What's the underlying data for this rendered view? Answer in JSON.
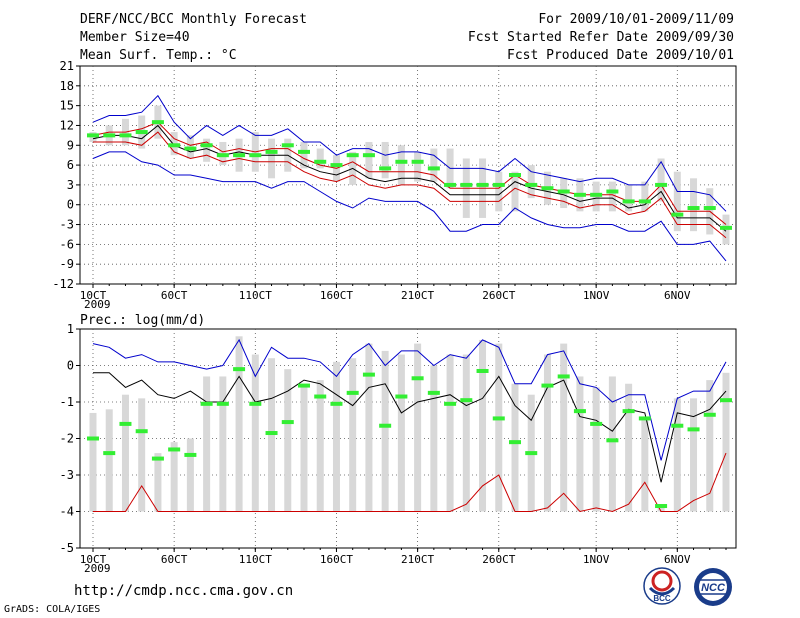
{
  "header": {
    "title": "DERF/NCC/BCC Monthly Forecast",
    "member_size": "Member Size=40",
    "variable1": "Mean Surf. Temp.: °C",
    "period": "For 2009/10/01-2009/11/09",
    "started": "Fcst Started Refer Date 2009/09/30",
    "produced": "Fcst Produced Date 2009/10/01"
  },
  "footer": {
    "url": "http://cmdp.ncc.cma.gov.cn",
    "grads": "GrADS: COLA/IGES",
    "logo1_text": "BCC",
    "logo2_text": "NCC"
  },
  "colors": {
    "upper": "#0000cc",
    "lower": "#0000cc",
    "mean": "#000000",
    "red": "#cc0000",
    "green": "#33ee33",
    "bar": "#d8d8d8",
    "grid": "#555555"
  },
  "chart_data": [
    {
      "type": "line",
      "title": "Mean Surf. Temp.: °C",
      "day_labels": [
        "10CT",
        "60CT",
        "110CT",
        "160CT",
        "210CT",
        "260CT",
        "1NOV",
        "6NOV"
      ],
      "label_days": [
        1,
        6,
        11,
        16,
        21,
        26,
        32,
        37
      ],
      "year_label": "2009",
      "ylim": [
        -12,
        21
      ],
      "yticks": [
        -12,
        -9,
        -6,
        -3,
        0,
        3,
        6,
        9,
        12,
        15,
        18,
        21
      ],
      "days": 40,
      "bar_low": [
        9.5,
        9,
        9,
        8.5,
        10,
        7.5,
        7,
        6.5,
        6,
        5,
        5,
        4,
        5,
        5.5,
        5.5,
        3.5,
        3,
        4,
        4,
        3,
        3.5,
        3.5,
        2.5,
        -2,
        -2,
        -1,
        -1,
        1,
        0,
        -0.5,
        -1,
        -1,
        -1,
        -1,
        -1,
        0.5,
        -4,
        -4,
        -4.5,
        -6
      ],
      "bar_high": [
        11,
        12,
        13,
        13.5,
        15,
        11,
        10.5,
        10,
        9.5,
        10,
        11,
        10,
        10,
        9.5,
        8.5,
        7.5,
        8,
        9.5,
        9.5,
        9,
        8,
        8.5,
        8.5,
        7,
        7,
        5,
        5,
        6,
        5,
        4,
        4,
        3.5,
        3.5,
        3,
        3.5,
        7,
        5,
        4,
        2.5,
        -1.5
      ],
      "green": [
        10.5,
        10.5,
        10.5,
        11,
        12.5,
        9,
        8.5,
        9,
        7.5,
        7.5,
        7.5,
        8,
        9,
        8,
        6.5,
        6,
        7.5,
        7.5,
        5.5,
        6.5,
        6.5,
        5.5,
        3,
        3,
        3,
        3,
        4.5,
        3,
        2.5,
        2,
        1.5,
        1.5,
        2,
        0.5,
        0.5,
        3,
        -1.5,
        -0.5,
        -0.5,
        -3.5
      ],
      "upper": [
        12.5,
        13.5,
        13.5,
        14,
        16.5,
        12.5,
        10,
        12,
        10.5,
        12,
        10.5,
        10.5,
        11.5,
        9.5,
        9.5,
        7.5,
        8.5,
        8.5,
        7.5,
        8,
        8,
        7.5,
        5.5,
        5.5,
        5.5,
        5,
        7,
        5,
        4.5,
        4,
        3.5,
        4,
        4,
        3,
        3,
        6.5,
        2,
        2,
        1.5,
        -1
      ],
      "mean": [
        10,
        10.5,
        10.5,
        10,
        12,
        9,
        8,
        8.5,
        7.5,
        8,
        7.5,
        7.5,
        7.5,
        6,
        5,
        4.5,
        5.5,
        4,
        3.5,
        4,
        4,
        3.5,
        1.5,
        1.5,
        1.5,
        1.5,
        3.5,
        2.5,
        2,
        1.5,
        0.5,
        1,
        1,
        -0.5,
        0,
        2,
        -2,
        -2,
        -2,
        -4
      ],
      "red_upper": [
        10.5,
        11,
        11,
        11.5,
        12.5,
        10,
        9,
        9.5,
        8,
        8.5,
        8,
        8.5,
        8.5,
        7,
        6,
        5.5,
        6.5,
        5,
        5,
        5,
        5,
        4.5,
        2.5,
        2.5,
        2.5,
        2.5,
        4.5,
        3,
        2.5,
        2,
        1.5,
        1.5,
        1.5,
        0.5,
        0.5,
        3,
        -1,
        -1,
        -1,
        -3
      ],
      "red_lower": [
        9.5,
        9.5,
        9.5,
        9,
        11,
        8,
        7,
        7.5,
        6.5,
        7,
        6.5,
        6.5,
        6.5,
        5,
        4,
        3.5,
        4.5,
        3,
        2.5,
        3,
        3,
        2.5,
        0.5,
        0.5,
        0.5,
        0.5,
        2.5,
        1.5,
        1,
        0.5,
        -0.5,
        0,
        0,
        -1.5,
        -1,
        1,
        -3,
        -3,
        -3,
        -5
      ],
      "lower": [
        7,
        8,
        8,
        6.5,
        6,
        4.5,
        4.5,
        4,
        3.5,
        3.5,
        3.5,
        2.5,
        3.5,
        3.5,
        2,
        0.5,
        -0.5,
        1,
        0.5,
        0.5,
        0.5,
        -1,
        -4,
        -4,
        -3,
        -3,
        -0.5,
        -2,
        -3,
        -3.5,
        -3.5,
        -3,
        -3,
        -4,
        -4,
        -2.5,
        -6,
        -6,
        -5.5,
        -8.5
      ]
    },
    {
      "type": "line",
      "title": "Prec.: log(mm/d)",
      "day_labels": [
        "10CT",
        "60CT",
        "110CT",
        "160CT",
        "210CT",
        "260CT",
        "1NOV",
        "6NOV"
      ],
      "label_days": [
        1,
        6,
        11,
        16,
        21,
        26,
        32,
        37
      ],
      "year_label": "2009",
      "ylim": [
        -5,
        1
      ],
      "yticks": [
        -5,
        -4,
        -3,
        -2,
        -1,
        0,
        1
      ],
      "days": 40,
      "bar_low": [
        -4,
        -4,
        -4,
        -4,
        -4,
        -4,
        -4,
        -4,
        -4,
        -4,
        -4,
        -4,
        -4,
        -4,
        -4,
        -4,
        -4,
        -4,
        -4,
        -4,
        -4,
        -4,
        -4,
        -4,
        -4,
        -4,
        -4,
        -4,
        -4,
        -4,
        -4,
        -4,
        -4,
        -4,
        -4,
        -4,
        -4,
        -4,
        -4,
        -4
      ],
      "bar_high": [
        -1.3,
        -1.2,
        -0.8,
        -0.9,
        -2.4,
        -2.1,
        -2.0,
        -0.3,
        -0.3,
        0.8,
        0.3,
        0.2,
        -0.1,
        -0.6,
        -0.4,
        0.1,
        0.2,
        0.6,
        0.4,
        0.3,
        0.6,
        0.0,
        0.3,
        0.3,
        0.7,
        0.6,
        -0.5,
        -0.8,
        0.3,
        0.6,
        -0.3,
        -0.6,
        -0.3,
        -0.5,
        -1.5,
        -3.8,
        -0.9,
        -0.9,
        -0.4,
        -0.2
      ],
      "green": [
        -2.0,
        -2.4,
        -1.6,
        -1.8,
        -2.55,
        -2.3,
        -2.45,
        -1.05,
        -1.05,
        -0.1,
        -1.05,
        -1.85,
        -1.55,
        -0.55,
        -0.85,
        -1.05,
        -0.75,
        -0.25,
        -1.65,
        -0.85,
        -0.35,
        -0.75,
        -1.05,
        -0.95,
        -0.15,
        -1.45,
        -2.1,
        -2.4,
        -0.55,
        -0.3,
        -1.25,
        -1.6,
        -2.05,
        -1.25,
        -1.45,
        -3.85,
        -1.65,
        -1.75,
        -1.35,
        -0.95
      ],
      "upper": [
        0.6,
        0.5,
        0.2,
        0.3,
        0.1,
        0.1,
        0.0,
        -0.1,
        0.0,
        0.7,
        -0.3,
        0.5,
        0.2,
        0.2,
        0.1,
        -0.3,
        0.3,
        0.6,
        0.0,
        0.4,
        0.4,
        0.0,
        0.3,
        0.2,
        0.7,
        0.5,
        -0.5,
        -0.5,
        0.3,
        0.4,
        -0.5,
        -0.6,
        -1.0,
        -0.8,
        -0.8,
        -2.6,
        -0.9,
        -0.7,
        -0.7,
        0.1
      ],
      "mean": [
        -0.2,
        -0.2,
        -0.6,
        -0.4,
        -0.8,
        -0.9,
        -0.7,
        -1.0,
        -1.0,
        -0.3,
        -1.0,
        -0.9,
        -0.7,
        -0.4,
        -0.5,
        -0.8,
        -1.1,
        -0.6,
        -0.5,
        -1.3,
        -1.0,
        -0.9,
        -0.8,
        -1.1,
        -0.9,
        -0.3,
        -1.1,
        -1.5,
        -0.6,
        -0.4,
        -1.4,
        -1.5,
        -1.8,
        -1.2,
        -1.3,
        -3.2,
        -1.3,
        -1.4,
        -1.2,
        -0.7
      ],
      "red": [
        -4,
        -4,
        -4,
        -3.3,
        -4,
        -4,
        -4,
        -4,
        -4,
        -4,
        -4,
        -4,
        -4,
        -4,
        -4,
        -4,
        -4,
        -4,
        -4,
        -4,
        -4,
        -4,
        -4,
        -3.8,
        -3.3,
        -3.0,
        -4,
        -4,
        -3.9,
        -3.5,
        -4,
        -3.9,
        -4,
        -3.8,
        -3.2,
        -4,
        -4,
        -3.7,
        -3.5,
        -2.4
      ]
    }
  ]
}
